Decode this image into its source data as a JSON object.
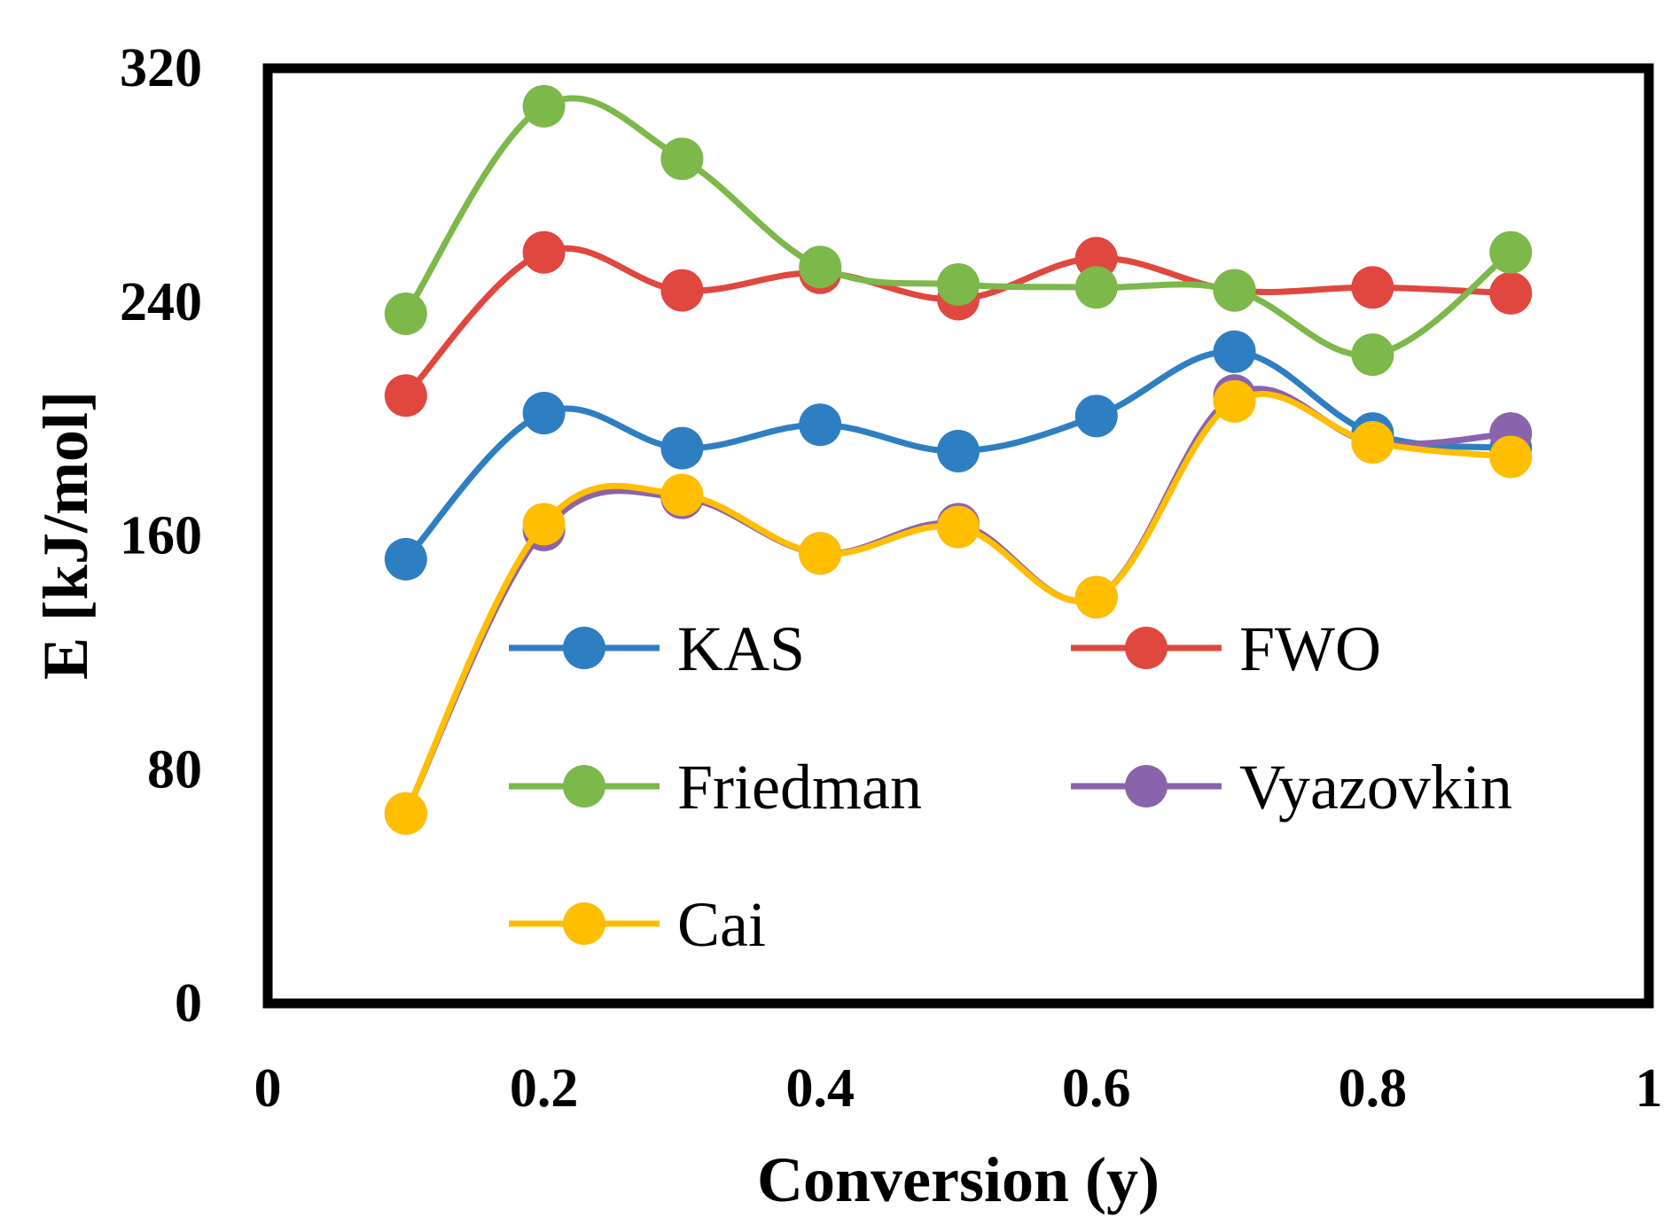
{
  "chart_data": {
    "type": "line",
    "title": "",
    "xlabel": "Conversion (y)",
    "ylabel": "E [kJ/mol]",
    "xlim": [
      0,
      1
    ],
    "ylim": [
      0,
      320
    ],
    "xticks": [
      0,
      0.2,
      0.4,
      0.6,
      0.8,
      1
    ],
    "yticks": [
      0,
      80,
      160,
      240,
      320
    ],
    "xtick_labels": [
      "0",
      "0.2",
      "0.4",
      "0.6",
      "0.8",
      "1"
    ],
    "ytick_labels": [
      "0",
      "80",
      "160",
      "240",
      "320"
    ],
    "grid": false,
    "legend": "inside-lower-right",
    "x": [
      0.1,
      0.2,
      0.3,
      0.4,
      0.5,
      0.6,
      0.7,
      0.8,
      0.9
    ],
    "series": [
      {
        "name": "KAS",
        "color": "#2e7fc2",
        "values": [
          152,
          202,
          190,
          198,
          189,
          201,
          223,
          195,
          190
        ]
      },
      {
        "name": "FWO",
        "color": "#e0473f",
        "values": [
          208,
          257,
          244,
          250,
          241,
          255,
          244,
          245,
          243
        ]
      },
      {
        "name": "Friedman",
        "color": "#7cb84a",
        "values": [
          236,
          307,
          289,
          252,
          246,
          245,
          244,
          222,
          257
        ]
      },
      {
        "name": "Vyazovkin",
        "color": "#8a63ad",
        "values": [
          65,
          162,
          173,
          154,
          164,
          139,
          208,
          192,
          195
        ]
      },
      {
        "name": "Cai",
        "color": "#ffbe00",
        "values": [
          65,
          164,
          174,
          154,
          163,
          139,
          206,
          192,
          187
        ]
      }
    ]
  }
}
